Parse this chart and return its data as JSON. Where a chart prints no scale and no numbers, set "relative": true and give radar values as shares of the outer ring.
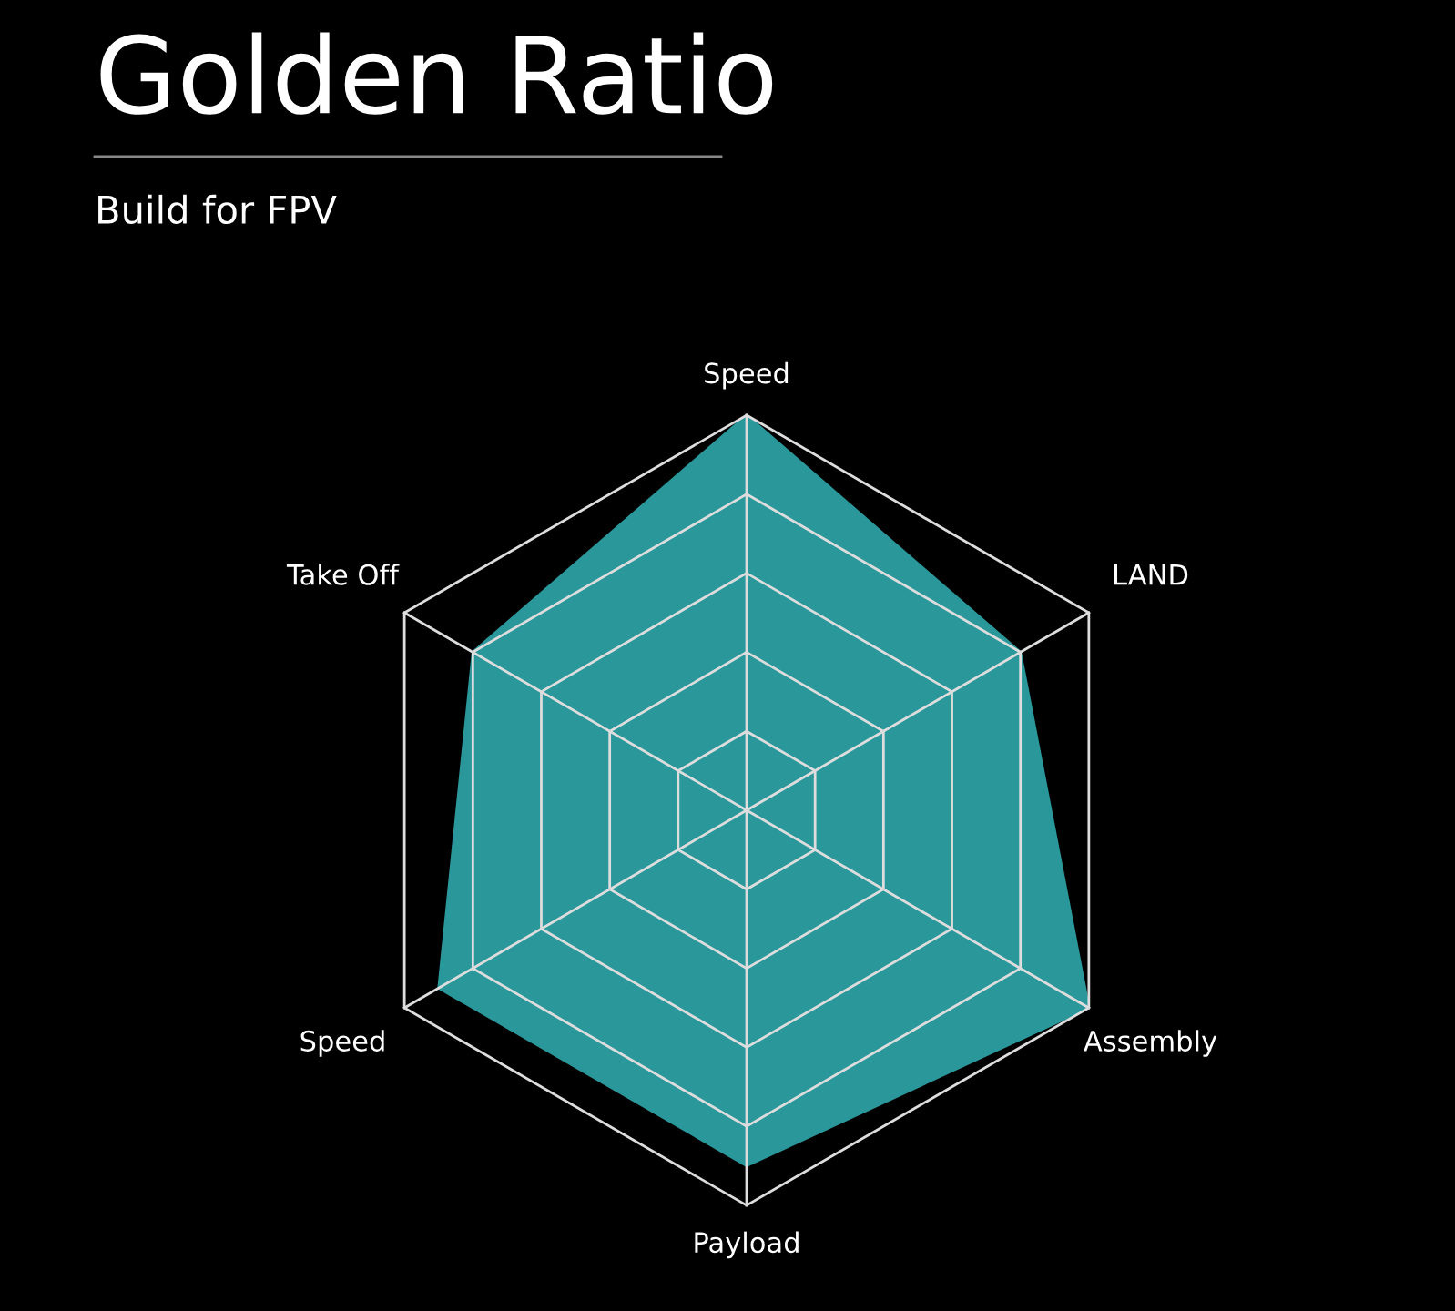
{
  "chart_data": {
    "type": "radar",
    "title": "Golden Ratio",
    "subtitle": "Build for FPV",
    "relative": true,
    "grid": true,
    "categories": [
      "Speed",
      "LAND",
      "Assembly",
      "Payload",
      "Speed",
      "Take Off"
    ],
    "series": [
      {
        "color": "#2a979b",
        "values": [
          1.0,
          0.8,
          1.0,
          0.9,
          0.9,
          0.8
        ]
      }
    ]
  }
}
